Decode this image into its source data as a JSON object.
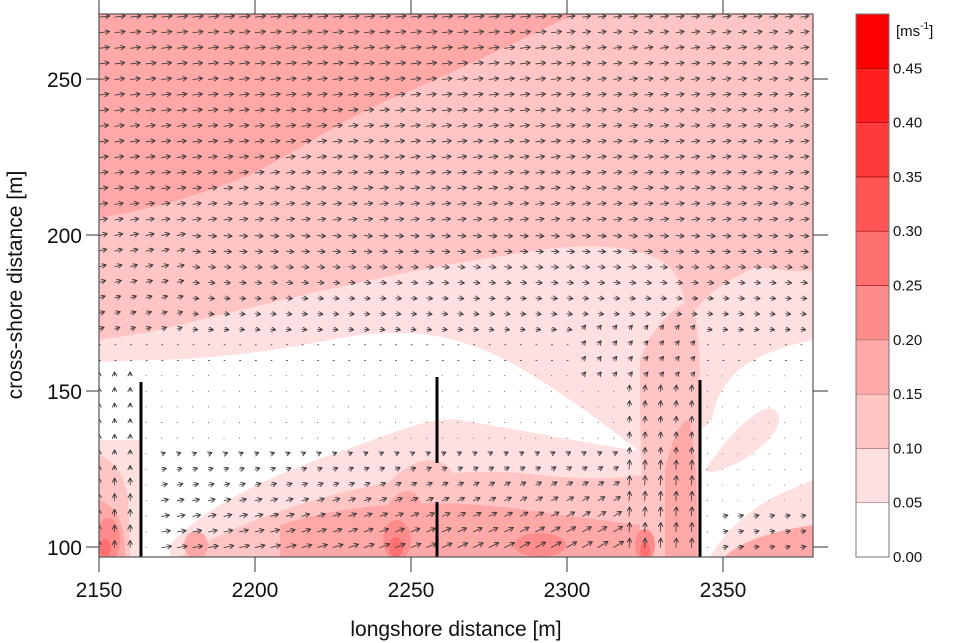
{
  "chart_data": {
    "type": "heatmap",
    "subtype": "filled-contour-with-quiver",
    "title": "",
    "xlabel": "longshore distance [m]",
    "ylabel": "cross-shore distance [m]",
    "xlim": [
      2150,
      2379
    ],
    "ylim": [
      97,
      271
    ],
    "xticks": [
      2150,
      2200,
      2250,
      2300,
      2350
    ],
    "yticks": [
      100,
      150,
      200,
      250
    ],
    "grid": false,
    "colorbar": {
      "unit_label": "[ms-1]",
      "levels": [
        0.0,
        0.05,
        0.1,
        0.15,
        0.2,
        0.25,
        0.3,
        0.35,
        0.4,
        0.45,
        0.5
      ],
      "tick_labels": [
        "0.00",
        "0.05",
        "0.10",
        "0.15",
        "0.20",
        "0.25",
        "0.30",
        "0.35",
        "0.40",
        "0.45"
      ],
      "colors": [
        "#ffffff",
        "#ffe0e0",
        "#ffc4c4",
        "#ffa8a8",
        "#ff8c8c",
        "#ff7070",
        "#ff5555",
        "#ff3a3a",
        "#ff1f1f",
        "#ff0000"
      ],
      "position": "right"
    },
    "structures": [
      {
        "name": "groyne-1",
        "x": 2163.5,
        "y_from": 97,
        "y_to": 153
      },
      {
        "name": "groyne-2-offshore",
        "x": 2258.5,
        "y_from": 126,
        "y_to": 154
      },
      {
        "name": "groyne-2-inshore",
        "x": 2258.5,
        "y_from": 97,
        "y_to": 114
      },
      {
        "name": "groyne-3",
        "x": 2343.5,
        "y_from": 97,
        "y_to": 153
      }
    ],
    "regions": [
      {
        "description": "offshore band (y>205) mostly 0.10-0.15 m/s, eastward flow",
        "speed_range": [
          0.1,
          0.15
        ]
      },
      {
        "description": "upper-left wedge (x<2300, y>205) 0.15-0.20 m/s",
        "speed_range": [
          0.15,
          0.2
        ]
      },
      {
        "description": "mid band y 165-205 0.05-0.10 m/s, eastward flow",
        "speed_range": [
          0.05,
          0.1
        ]
      },
      {
        "description": "embayments between groynes near stagnant 0.00-0.05 m/s",
        "speed_range": [
          0.0,
          0.05
        ]
      },
      {
        "description": "rip current near x≈2335, northward flow 0.10-0.20 m/s",
        "speed_range": [
          0.1,
          0.2
        ]
      },
      {
        "description": "nearshore hotspots at y≈100 near x≈2151, 2181, 2247, 2293, 2326 up to 0.25-0.30 m/s",
        "speed_range": [
          0.2,
          0.3
        ]
      }
    ],
    "quiver": {
      "x_spacing_m": 5,
      "y_spacing_m": 5,
      "dominant_direction_offshore": "east (+x)",
      "rip_direction": "north (+y)"
    }
  },
  "axes": {
    "x_tick_labels": [
      "2150",
      "2200",
      "2250",
      "2300",
      "2350"
    ],
    "y_tick_labels": [
      "100",
      "150",
      "200",
      "250"
    ],
    "xlabel": "longshore distance [m]",
    "ylabel": "cross-shore distance [m]"
  },
  "colorbar": {
    "unit_main": "[ms",
    "unit_sup": "-1",
    "unit_close": "]",
    "labels": [
      "0.45",
      "0.40",
      "0.35",
      "0.30",
      "0.25",
      "0.20",
      "0.15",
      "0.10",
      "0.05",
      "0.00"
    ]
  }
}
